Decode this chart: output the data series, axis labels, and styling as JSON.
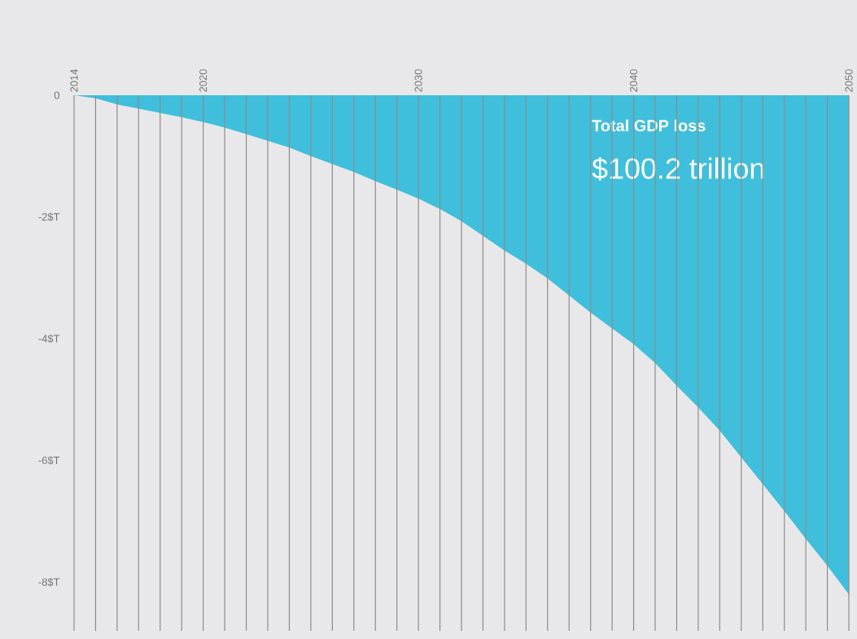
{
  "chart_data": {
    "type": "area",
    "x": [
      2014,
      2015,
      2016,
      2017,
      2018,
      2019,
      2020,
      2021,
      2022,
      2023,
      2024,
      2025,
      2026,
      2027,
      2028,
      2029,
      2030,
      2031,
      2032,
      2033,
      2034,
      2035,
      2036,
      2037,
      2038,
      2039,
      2040,
      2041,
      2042,
      2043,
      2044,
      2045,
      2046,
      2047,
      2048,
      2049,
      2050
    ],
    "values": [
      0,
      -0.05,
      -0.15,
      -0.22,
      -0.29,
      -0.36,
      -0.44,
      -0.53,
      -0.64,
      -0.75,
      -0.86,
      -1.0,
      -1.13,
      -1.26,
      -1.41,
      -1.55,
      -1.7,
      -1.87,
      -2.07,
      -2.31,
      -2.55,
      -2.77,
      -3.01,
      -3.29,
      -3.57,
      -3.83,
      -4.09,
      -4.4,
      -4.77,
      -5.13,
      -5.51,
      -5.95,
      -6.39,
      -6.83,
      -7.29,
      -7.73,
      -8.2
    ],
    "color": "#3fbfdb",
    "xlim": [
      2014,
      2050
    ],
    "xticks": [
      2014,
      {
        "value": 2015,
        "label": null
      },
      {
        "value": 2016,
        "label": null
      },
      {
        "value": 2017,
        "label": null
      },
      {
        "value": 2018,
        "label": null
      },
      {
        "value": 2019,
        "label": null
      },
      2020,
      {
        "value": 2021,
        "label": null
      },
      {
        "value": 2022,
        "label": null
      },
      {
        "value": 2023,
        "label": null
      },
      {
        "value": 2024,
        "label": null
      },
      {
        "value": 2025,
        "label": null
      },
      {
        "value": 2026,
        "label": null
      },
      {
        "value": 2027,
        "label": null
      },
      {
        "value": 2028,
        "label": null
      },
      {
        "value": 2029,
        "label": null
      },
      2030,
      {
        "value": 2031,
        "label": null
      },
      {
        "value": 2032,
        "label": null
      },
      {
        "value": 2033,
        "label": null
      },
      {
        "value": 2034,
        "label": null
      },
      {
        "value": 2035,
        "label": null
      },
      {
        "value": 2036,
        "label": null
      },
      {
        "value": 2037,
        "label": null
      },
      {
        "value": 2038,
        "label": null
      },
      {
        "value": 2039,
        "label": null
      },
      2040,
      {
        "value": 2041,
        "label": null
      },
      {
        "value": 2042,
        "label": null
      },
      {
        "value": 2043,
        "label": null
      },
      {
        "value": 2044,
        "label": null
      },
      {
        "value": 2045,
        "label": null
      },
      {
        "value": 2046,
        "label": null
      },
      {
        "value": 2047,
        "label": null
      },
      {
        "value": 2048,
        "label": null
      },
      {
        "value": 2049,
        "label": null
      },
      2050
    ],
    "ylim": [
      -8.8,
      0
    ],
    "yticks": [
      0,
      {
        "value": -2,
        "label": "-2$T"
      },
      {
        "value": -4,
        "label": "-4$T"
      },
      {
        "value": -6,
        "label": "-6$T"
      },
      {
        "value": -8,
        "label": "-8$T"
      }
    ],
    "grid": "x",
    "annotations": [
      "**Total GDP loss**",
      "$100.2 trillion"
    ]
  }
}
